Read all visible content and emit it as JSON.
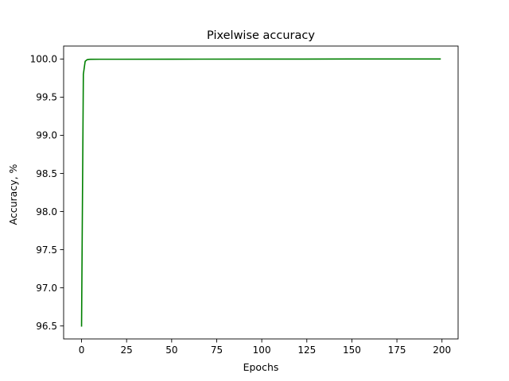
{
  "chart_data": {
    "type": "line",
    "title": "Pixelwise accuracy",
    "xlabel": "Epochs",
    "ylabel": "Accuracy, %",
    "xlim": [
      -9.95,
      208.95
    ],
    "ylim": [
      96.33,
      100.17
    ],
    "xticks": [
      0,
      25,
      50,
      75,
      100,
      125,
      150,
      175,
      200
    ],
    "yticks": [
      96.5,
      97.0,
      97.5,
      98.0,
      98.5,
      99.0,
      99.5,
      100.0
    ],
    "xtick_labels": [
      "0",
      "25",
      "50",
      "75",
      "100",
      "125",
      "150",
      "175",
      "200"
    ],
    "ytick_labels": [
      "96.5",
      "97.0",
      "97.5",
      "98.0",
      "98.5",
      "99.0",
      "99.5",
      "100.0"
    ],
    "grid": false,
    "legend": false,
    "series": [
      {
        "color": "#008000",
        "x": [
          0,
          1,
          2,
          3,
          4,
          5,
          10,
          20,
          50,
          100,
          150,
          199
        ],
        "y": [
          96.5,
          99.8,
          99.97,
          99.99,
          99.995,
          99.996,
          99.997,
          99.997,
          99.998,
          99.999,
          100.0,
          100.0
        ]
      }
    ]
  }
}
